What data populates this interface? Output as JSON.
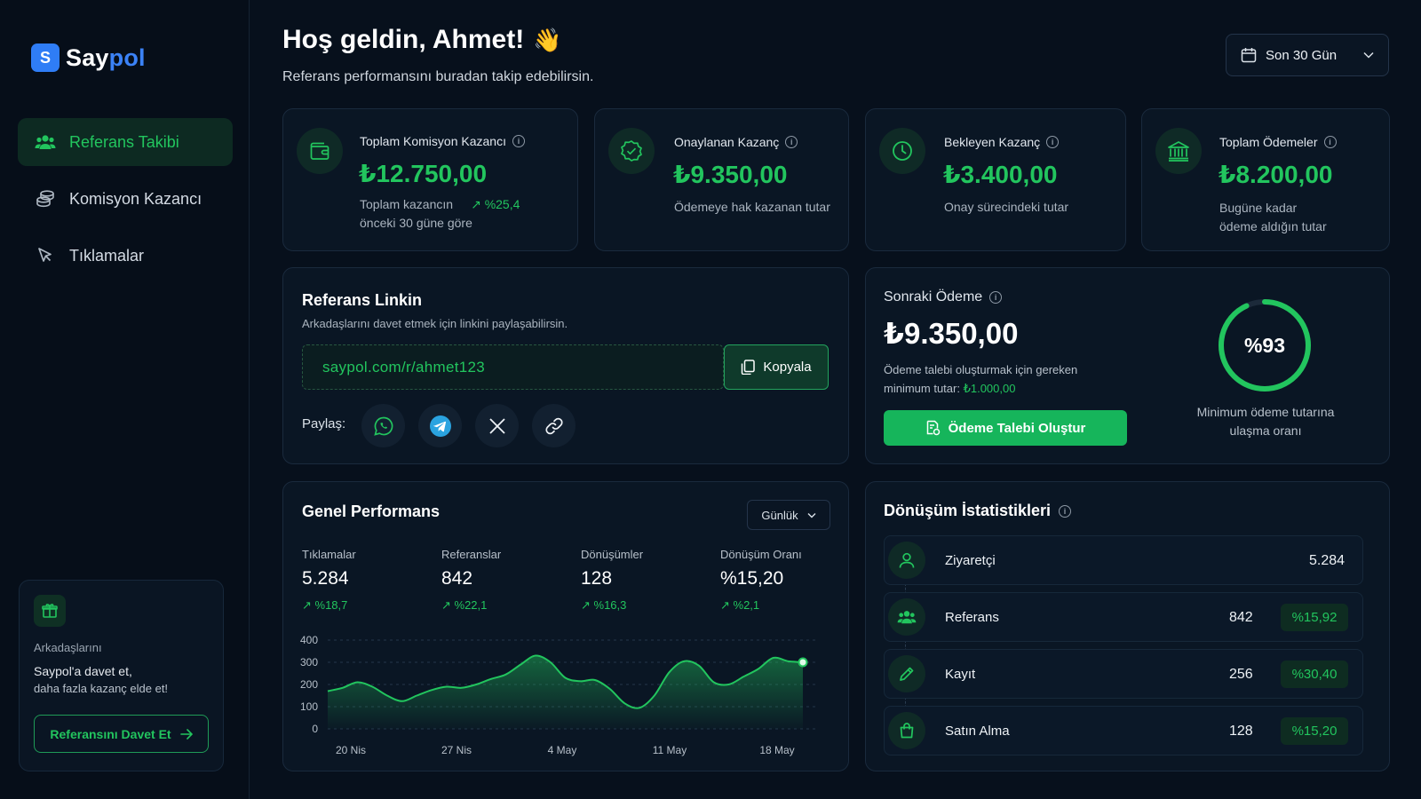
{
  "brand": {
    "letter": "S",
    "name_a": "Say",
    "name_b": "pol",
    "accent": "#3b82f6"
  },
  "colors": {
    "green": "#22c55e",
    "bg": "#07101c",
    "card": "#0a1624"
  },
  "sidebar": {
    "items": [
      {
        "label": "Referans Takibi",
        "icon": "users-icon",
        "active": true
      },
      {
        "label": "Komisyon Kazancı",
        "icon": "coins-icon",
        "active": false
      },
      {
        "label": "Tıklamalar",
        "icon": "cursor-icon",
        "active": false
      }
    ],
    "invite": {
      "line1": "Arkadaşlarını",
      "line2": "Saypol'a davet et,",
      "line3": "daha fazla kazanç elde et!",
      "button": "Referansını Davet Et"
    }
  },
  "header": {
    "greeting": "Hoş geldin, Ahmet!",
    "wave": "👋",
    "subtitle": "Referans performansını buradan takip edebilirsin.",
    "date_filter": "Son 30 Gün"
  },
  "stats": [
    {
      "label": "Toplam Komisyon Kazancı",
      "value": "₺12.750,00",
      "desc1": "Toplam kazancın",
      "trend": "%25,4",
      "desc2": "önceki 30 güne göre",
      "icon": "wallet-icon"
    },
    {
      "label": "Onaylanan Kazanç",
      "value": "₺9.350,00",
      "desc1": "Ödemeye hak kazanan tutar",
      "icon": "verified-badge-icon"
    },
    {
      "label": "Bekleyen Kazanç",
      "value": "₺3.400,00",
      "desc1": "Onay sürecindeki tutar",
      "icon": "clock-icon"
    },
    {
      "label": "Toplam Ödemeler",
      "value": "₺8.200,00",
      "desc1": "Bugüne kadar",
      "desc2": "ödeme aldığın tutar",
      "icon": "bank-icon"
    }
  ],
  "referral": {
    "title": "Referans Linkin",
    "subtitle": "Arkadaşlarını davet etmek için linkini paylaşabilirsin.",
    "link": "saypol.com/r/ahmet123",
    "copy": "Kopyala",
    "share_label": "Paylaş:",
    "share": [
      "whatsapp-icon",
      "telegram-icon",
      "x-icon",
      "link-icon"
    ]
  },
  "payout": {
    "title": "Sonraki Ödeme",
    "amount": "₺9.350,00",
    "note1": "Ödeme talebi oluşturmak için gereken",
    "note2": "minimum tutar:",
    "min": "₺1.000,00",
    "button": "Ödeme Talebi Oluştur",
    "progress": 0.93,
    "progress_label": "%93",
    "caption1": "Minimum ödeme tutarına",
    "caption2": "ulaşma oranı"
  },
  "performance": {
    "title": "Genel Performans",
    "period": "Günlük",
    "kpis": [
      {
        "label": "Tıklamalar",
        "value": "5.284",
        "trend": "%18,7"
      },
      {
        "label": "Referanslar",
        "value": "842",
        "trend": "%22,1"
      },
      {
        "label": "Dönüşümler",
        "value": "128",
        "trend": "%16,3"
      },
      {
        "label": "Dönüşüm Oranı",
        "value": "%15,20",
        "trend": "%2,1"
      }
    ]
  },
  "chart_data": {
    "type": "area",
    "x_ticks": [
      "20 Nis",
      "27 Nis",
      "4 May",
      "11 May",
      "18 May"
    ],
    "y_ticks": [
      "400",
      "300",
      "200",
      "100",
      "0"
    ],
    "ylim": [
      0,
      400
    ],
    "series": [
      {
        "values": [
          170,
          185,
          210,
          190,
          150,
          125,
          150,
          175,
          190,
          185,
          200,
          225,
          245,
          290,
          330,
          300,
          230,
          215,
          220,
          180,
          115,
          95,
          150,
          255,
          305,
          285,
          210,
          200,
          235,
          270,
          320,
          305,
          300
        ]
      }
    ]
  },
  "conversion": {
    "title": "Dönüşüm İstatistikleri",
    "rows": [
      {
        "label": "Ziyaretçi",
        "value": "5.284",
        "pct": "",
        "icon": "user-icon"
      },
      {
        "label": "Referans",
        "value": "842",
        "pct": "%15,92",
        "icon": "users-icon"
      },
      {
        "label": "Kayıt",
        "value": "256",
        "pct": "%30,40",
        "icon": "pencil-icon"
      },
      {
        "label": "Satın Alma",
        "value": "128",
        "pct": "%15,20",
        "icon": "shopping-bag-icon"
      }
    ]
  }
}
